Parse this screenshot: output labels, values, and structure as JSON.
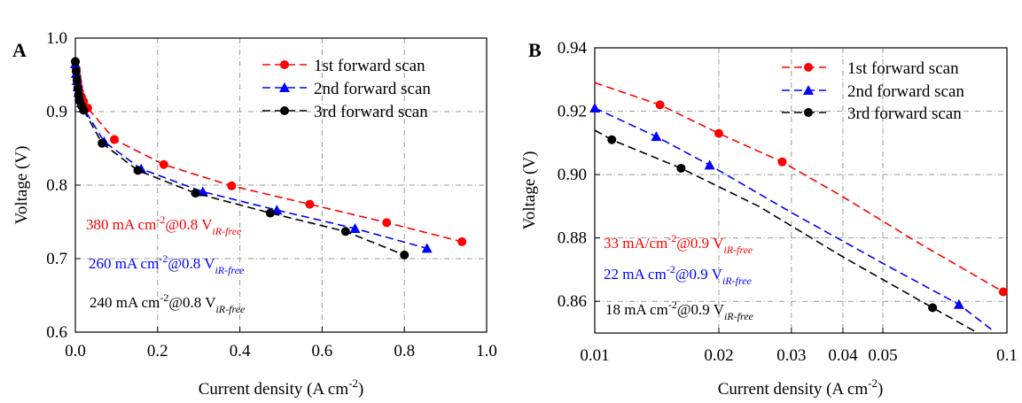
{
  "chart_data": [
    {
      "panel": "A",
      "type": "line",
      "xlabel": "Current density (A cm",
      "xlabel_sup": "-2",
      "xlabel_end": ")",
      "ylabel": "Voltage (V)",
      "xlim": [
        0.0,
        1.0
      ],
      "ylim": [
        0.6,
        1.0
      ],
      "xticks": [
        "0.0",
        "0.2",
        "0.4",
        "0.6",
        "0.8",
        "1.0"
      ],
      "yticks": [
        "0.6",
        "0.7",
        "0.8",
        "0.9",
        "1.0"
      ],
      "grid": true,
      "legend_position": "top-right",
      "series": [
        {
          "name": "1st forward scan",
          "color": "#ff0000",
          "marker": "circle",
          "x": [
            0.0,
            0.002,
            0.004,
            0.006,
            0.008,
            0.01,
            0.015,
            0.02,
            0.03,
            0.095,
            0.215,
            0.38,
            0.57,
            0.757,
            0.94
          ],
          "y": [
            0.968,
            0.958,
            0.948,
            0.94,
            0.933,
            0.927,
            0.92,
            0.914,
            0.905,
            0.862,
            0.828,
            0.799,
            0.774,
            0.749,
            0.723
          ]
        },
        {
          "name": "2nd forward scan",
          "color": "#0000ff",
          "marker": "triangle",
          "x": [
            0.0,
            0.002,
            0.004,
            0.006,
            0.008,
            0.01,
            0.015,
            0.02,
            0.07,
            0.16,
            0.31,
            0.49,
            0.68,
            0.855
          ],
          "y": [
            0.965,
            0.952,
            0.942,
            0.934,
            0.926,
            0.92,
            0.912,
            0.905,
            0.859,
            0.822,
            0.791,
            0.766,
            0.741,
            0.714
          ]
        },
        {
          "name": "3rd forward scan",
          "color": "#000000",
          "marker": "circle",
          "x": [
            0.0,
            0.002,
            0.004,
            0.006,
            0.008,
            0.01,
            0.015,
            0.02,
            0.065,
            0.152,
            0.292,
            0.474,
            0.657,
            0.8
          ],
          "y": [
            0.968,
            0.955,
            0.943,
            0.932,
            0.923,
            0.915,
            0.908,
            0.902,
            0.857,
            0.82,
            0.789,
            0.762,
            0.737,
            0.705
          ]
        }
      ],
      "annotations": [
        {
          "value": "380 mA cm",
          "sup": "-2",
          "rest": "@0.8 V",
          "sub": "iR-free",
          "color": "#ff0000"
        },
        {
          "value": "260 mA cm",
          "sup": "-2",
          "rest": "@0.8 V",
          "sub": "iR-free",
          "color": "#0000ff"
        },
        {
          "value": "240 mA cm",
          "sup": "-2",
          "rest": "@0.8 V",
          "sub": "iR-free",
          "color": "#000000"
        }
      ]
    },
    {
      "panel": "B",
      "type": "line",
      "xlabel": "Current density (A cm",
      "xlabel_sup": "-2",
      "xlabel_end": ")",
      "ylabel": "Voltage (V)",
      "xscale": "log",
      "xlim": [
        0.01,
        0.1
      ],
      "ylim": [
        0.85,
        0.94
      ],
      "xticks": [
        {
          "v": 0.01,
          "label": "0.01"
        },
        {
          "v": 0.02,
          "label": "0.02"
        },
        {
          "v": 0.03,
          "label": "0.03"
        },
        {
          "v": 0.04,
          "label": "0.04"
        },
        {
          "v": 0.05,
          "label": "0.05"
        },
        {
          "v": 0.1,
          "label": "0.1"
        }
      ],
      "yticks": [
        "0.86",
        "0.88",
        "0.90",
        "0.92",
        "0.94"
      ],
      "grid": true,
      "legend_position": "top-right",
      "series": [
        {
          "name": "1st forward scan",
          "color": "#ff0000",
          "marker": "circle",
          "points_x": [
            0.0144,
            0.02,
            0.0285,
            0.098
          ],
          "points_y": [
            0.922,
            0.913,
            0.904,
            0.863
          ],
          "fit_x": [
            0.01,
            0.0144,
            0.02,
            0.0285,
            0.04,
            0.06,
            0.098
          ],
          "fit_y": [
            0.929,
            0.922,
            0.913,
            0.904,
            0.893,
            0.879,
            0.863
          ]
        },
        {
          "name": "2nd forward scan",
          "color": "#0000ff",
          "marker": "triangle",
          "points_x": [
            0.01,
            0.0141,
            0.019,
            0.0765
          ],
          "points_y": [
            0.921,
            0.912,
            0.903,
            0.859
          ],
          "fit_x": [
            0.01,
            0.0141,
            0.019,
            0.03,
            0.05,
            0.0765,
            0.092
          ],
          "fit_y": [
            0.921,
            0.912,
            0.903,
            0.888,
            0.872,
            0.859,
            0.851
          ]
        },
        {
          "name": "3rd forward scan",
          "color": "#000000",
          "marker": "circle",
          "points_x": [
            0.011,
            0.0162,
            0.066
          ],
          "points_y": [
            0.911,
            0.902,
            0.858
          ],
          "fit_x": [
            0.01,
            0.011,
            0.0162,
            0.025,
            0.04,
            0.066,
            0.085
          ],
          "fit_y": [
            0.914,
            0.911,
            0.902,
            0.89,
            0.874,
            0.858,
            0.85
          ]
        }
      ],
      "annotations": [
        {
          "value": "33 mA/cm",
          "sup": "-2",
          "rest": "@0.9 V",
          "sub": "iR-free",
          "color": "#ff0000"
        },
        {
          "value": "22 mA cm",
          "sup": "-2",
          "rest": "@0.9 V",
          "sub": "iR-free",
          "color": "#0000ff"
        },
        {
          "value": "18 mA cm",
          "sup": "-2",
          "rest": "@0.9 V",
          "sub": "iR-free",
          "color": "#000000"
        }
      ]
    }
  ]
}
